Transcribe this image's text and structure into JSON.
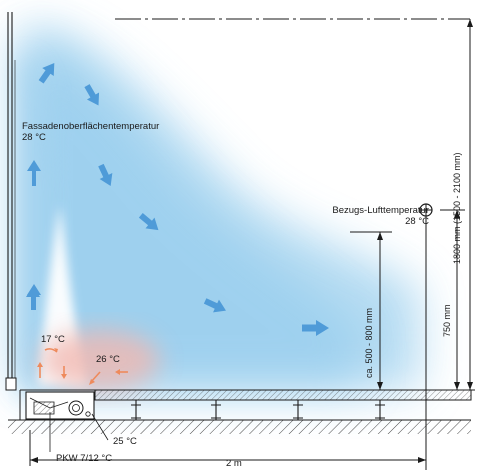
{
  "facade_temperature": {
    "label": "Fassadenoberflächentemperatur",
    "value": "28 °C"
  },
  "reference_temperature": {
    "label": "Bezugs-Lufttemperatur",
    "value": "28 °C"
  },
  "temperatures": {
    "t17": "17 °C",
    "t26": "26 °C",
    "t25": "25 °C",
    "supply": "PKW 7/12 °C"
  },
  "dimensions": {
    "overall_height": "1800 mm (1500 - 2100 mm)",
    "measure_height": "750 mm",
    "zone_height": "ca. 500 - 800 mm",
    "width": "2 m"
  },
  "colors": {
    "airflow_blue": "#9fd0ee",
    "arrow_blue": "#4f9bd8",
    "warm_red": "#f2b8b0",
    "warm_arrow": "#ee8a5c",
    "line": "#1a1a1a"
  }
}
